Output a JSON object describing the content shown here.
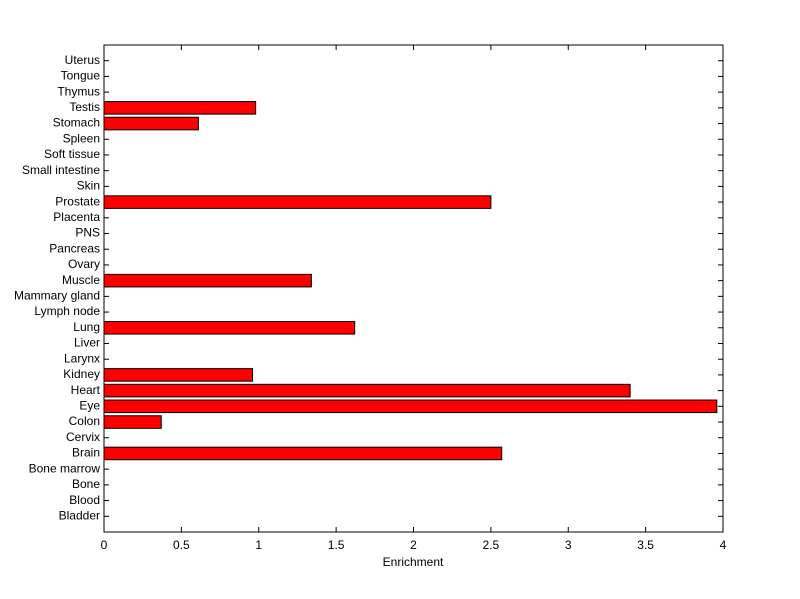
{
  "chart_data": {
    "type": "barh",
    "xlabel": "Enrichment",
    "categories": [
      "Bladder",
      "Blood",
      "Bone",
      "Bone marrow",
      "Brain",
      "Cervix",
      "Colon",
      "Eye",
      "Heart",
      "Kidney",
      "Larynx",
      "Liver",
      "Lung",
      "Lymph node",
      "Mammary gland",
      "Muscle",
      "Ovary",
      "Pancreas",
      "PNS",
      "Placenta",
      "Prostate",
      "Skin",
      "Small intestine",
      "Soft tissue",
      "Spleen",
      "Stomach",
      "Testis",
      "Thymus",
      "Tongue",
      "Uterus"
    ],
    "values": [
      0,
      0,
      0,
      0,
      2.57,
      0,
      0.37,
      3.96,
      3.4,
      0.96,
      0,
      0,
      1.62,
      0,
      0,
      1.34,
      0,
      0,
      0,
      0,
      2.5,
      0,
      0,
      0,
      0,
      0.61,
      0.98,
      0,
      0,
      0
    ],
    "color": "#ff0000",
    "xlim": [
      0,
      4
    ],
    "xticks": [
      0,
      0.5,
      1,
      1.5,
      2,
      2.5,
      3,
      3.5,
      4
    ]
  }
}
